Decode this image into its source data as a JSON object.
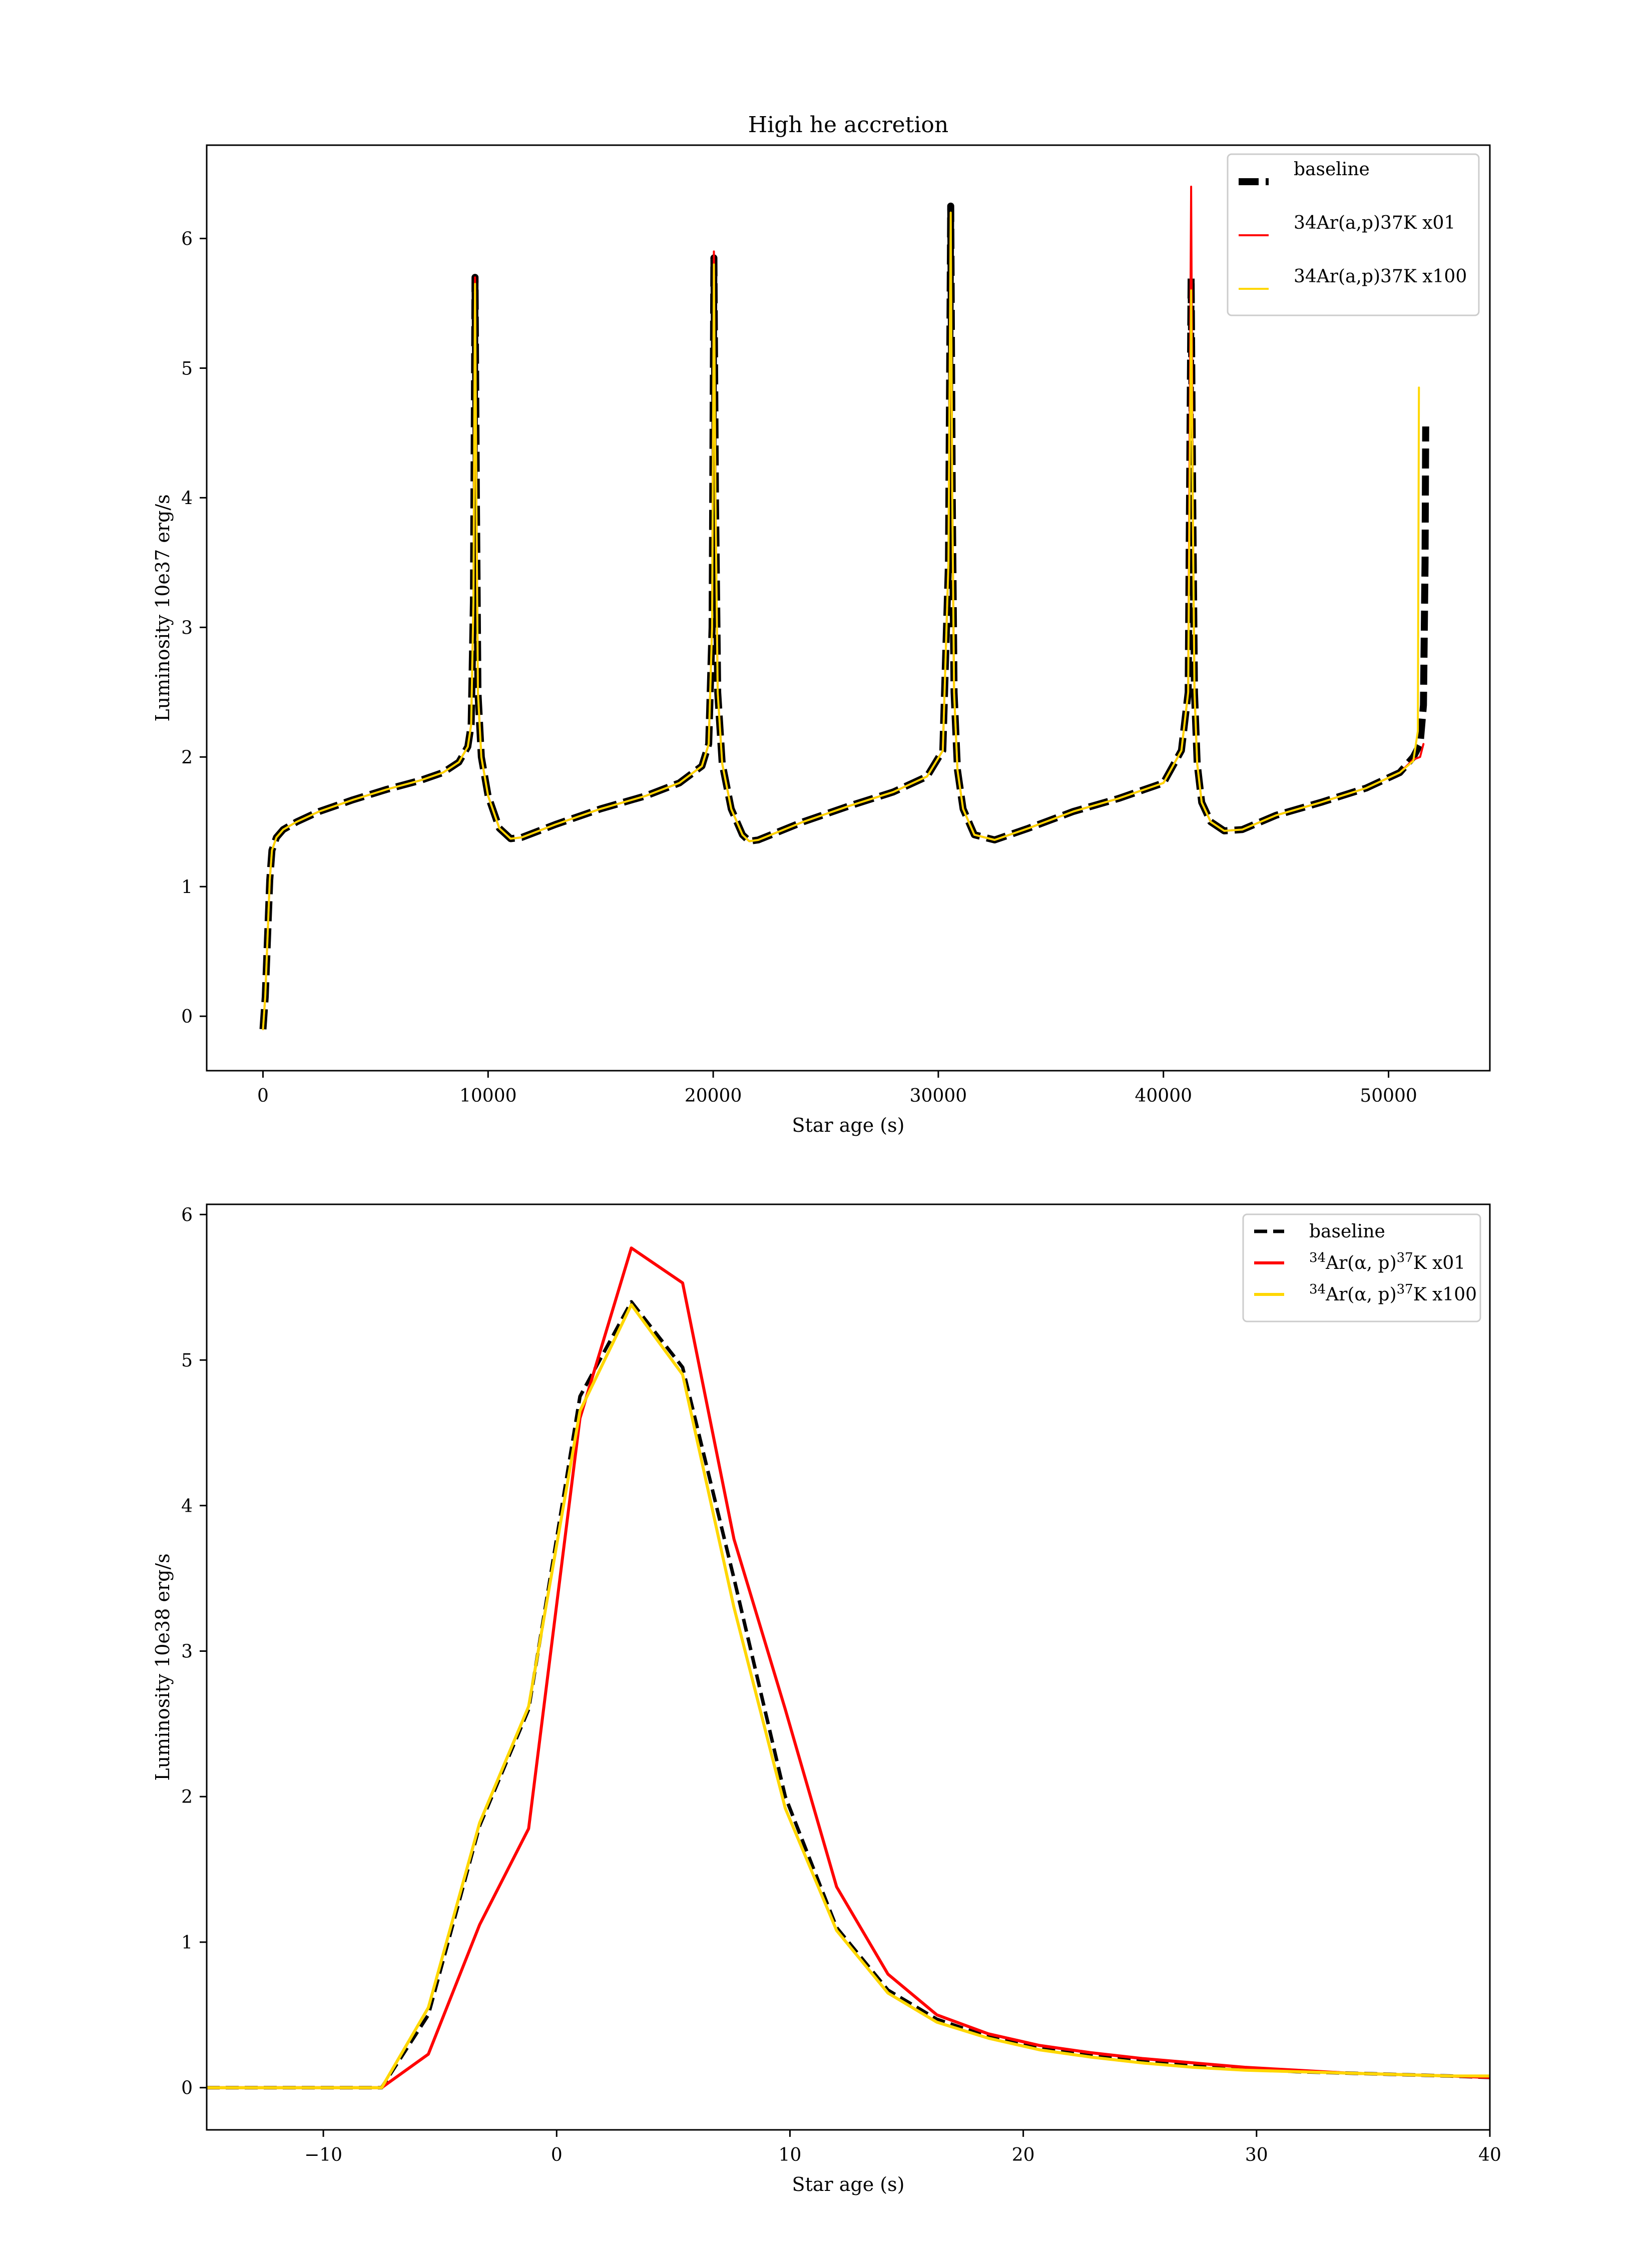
{
  "chart_data": [
    {
      "type": "line",
      "title": "High he accretion",
      "xlabel": "Star age (s)",
      "ylabel": "Luminosity 10e37 erg/s",
      "xlim": [
        -2500,
        54500
      ],
      "ylim": [
        -0.42,
        6.72
      ],
      "xticks": [
        0,
        10000,
        20000,
        30000,
        40000,
        50000
      ],
      "yticks": [
        0,
        1,
        2,
        3,
        4,
        5,
        6
      ],
      "grid": false,
      "legend_position": "top-right",
      "series": [
        {
          "name": "baseline",
          "color": "#000000",
          "style": "dashed",
          "x": [
            0,
            100,
            200,
            300,
            400,
            600,
            900,
            1500,
            2500,
            4000,
            5500,
            7000,
            8000,
            8700,
            9100,
            9250,
            9350,
            9420,
            9480,
            9550,
            9700,
            10000,
            10500,
            11000,
            11500,
            13000,
            15000,
            17000,
            18500,
            19500,
            19800,
            19950,
            20030,
            20100,
            20200,
            20400,
            20800,
            21300,
            21600,
            22000,
            24000,
            26000,
            28000,
            29500,
            30200,
            30450,
            30550,
            30620,
            30700,
            30850,
            31100,
            31600,
            32500,
            34000,
            36000,
            38000,
            40000,
            40800,
            41100,
            41230,
            41300,
            41380,
            41500,
            41700,
            42100,
            42700,
            43500,
            45000,
            47000,
            49000,
            50500,
            51100,
            51400,
            51550,
            51620,
            51650
          ],
          "y": [
            -0.1,
            0.15,
            0.6,
            1.05,
            1.28,
            1.38,
            1.44,
            1.5,
            1.58,
            1.67,
            1.75,
            1.82,
            1.88,
            1.96,
            2.08,
            2.25,
            3.2,
            5.7,
            4.0,
            2.5,
            2.0,
            1.7,
            1.45,
            1.37,
            1.38,
            1.48,
            1.6,
            1.7,
            1.8,
            1.93,
            2.1,
            3.0,
            5.85,
            4.0,
            2.5,
            1.95,
            1.6,
            1.4,
            1.35,
            1.36,
            1.5,
            1.62,
            1.73,
            1.85,
            2.05,
            3.5,
            6.25,
            4.0,
            2.5,
            1.9,
            1.6,
            1.4,
            1.36,
            1.45,
            1.58,
            1.68,
            1.8,
            2.05,
            2.5,
            5.7,
            4.0,
            2.5,
            1.95,
            1.65,
            1.5,
            1.43,
            1.44,
            1.55,
            1.65,
            1.76,
            1.88,
            2.0,
            2.1,
            2.4,
            3.5,
            4.55
          ]
        },
        {
          "name": "34Ar(a,p)37K x01",
          "color": "#ff0000",
          "style": "solid",
          "x": [
            0,
            100,
            200,
            300,
            400,
            600,
            900,
            1500,
            2500,
            4000,
            5500,
            7000,
            8000,
            8700,
            9100,
            9250,
            9350,
            9420,
            9480,
            9550,
            9700,
            10000,
            10500,
            11000,
            11500,
            13000,
            15000,
            17000,
            18500,
            19500,
            19800,
            19950,
            20030,
            20100,
            20200,
            20400,
            20800,
            21300,
            21600,
            22000,
            24000,
            26000,
            28000,
            29500,
            30200,
            30450,
            30550,
            30620,
            30700,
            30850,
            31100,
            31600,
            32500,
            34000,
            36000,
            38000,
            40000,
            40800,
            41100,
            41230,
            41300,
            41380,
            41500,
            41700,
            42100,
            42700,
            43500,
            45000,
            47000,
            49000,
            50500,
            51100,
            51400,
            51550
          ],
          "y": [
            -0.1,
            0.15,
            0.6,
            1.05,
            1.28,
            1.38,
            1.44,
            1.5,
            1.58,
            1.67,
            1.75,
            1.82,
            1.88,
            1.96,
            2.08,
            2.25,
            3.2,
            5.7,
            4.0,
            2.5,
            2.0,
            1.7,
            1.45,
            1.37,
            1.38,
            1.48,
            1.6,
            1.7,
            1.8,
            1.93,
            2.1,
            3.0,
            5.9,
            4.0,
            2.5,
            1.95,
            1.6,
            1.4,
            1.35,
            1.36,
            1.5,
            1.62,
            1.73,
            1.85,
            2.05,
            3.5,
            6.2,
            4.0,
            2.5,
            1.9,
            1.6,
            1.4,
            1.36,
            1.45,
            1.58,
            1.68,
            1.8,
            2.05,
            2.5,
            6.4,
            4.0,
            2.5,
            1.95,
            1.65,
            1.5,
            1.43,
            1.44,
            1.55,
            1.65,
            1.76,
            1.88,
            1.98,
            2.0,
            2.1
          ]
        },
        {
          "name": "34Ar(a,p)37K x100",
          "color": "#ffd700",
          "style": "solid",
          "x": [
            0,
            100,
            200,
            300,
            400,
            600,
            900,
            1500,
            2500,
            4000,
            5500,
            7000,
            8000,
            8700,
            9100,
            9250,
            9350,
            9420,
            9480,
            9550,
            9700,
            10000,
            10500,
            11000,
            11500,
            13000,
            15000,
            17000,
            18500,
            19500,
            19800,
            19950,
            20030,
            20100,
            20200,
            20400,
            20800,
            21300,
            21600,
            22000,
            24000,
            26000,
            28000,
            29500,
            30200,
            30450,
            30550,
            30620,
            30700,
            30850,
            31100,
            31600,
            32500,
            34000,
            36000,
            38000,
            40000,
            40800,
            41100,
            41230,
            41300,
            41380,
            41500,
            41700,
            42100,
            42700,
            43500,
            45000,
            47000,
            49000,
            50500,
            51100,
            51300,
            51350
          ],
          "y": [
            -0.1,
            0.15,
            0.6,
            1.05,
            1.28,
            1.38,
            1.44,
            1.5,
            1.58,
            1.67,
            1.75,
            1.82,
            1.88,
            1.96,
            2.08,
            2.25,
            3.2,
            5.65,
            4.0,
            2.5,
            2.0,
            1.7,
            1.45,
            1.37,
            1.38,
            1.48,
            1.6,
            1.7,
            1.8,
            1.93,
            2.1,
            3.0,
            5.8,
            4.0,
            2.5,
            1.95,
            1.6,
            1.4,
            1.35,
            1.36,
            1.5,
            1.62,
            1.73,
            1.85,
            2.05,
            3.5,
            6.2,
            4.0,
            2.5,
            1.9,
            1.6,
            1.4,
            1.36,
            1.45,
            1.58,
            1.68,
            1.8,
            2.05,
            2.5,
            5.6,
            4.0,
            2.5,
            1.95,
            1.65,
            1.5,
            1.43,
            1.44,
            1.55,
            1.65,
            1.76,
            1.88,
            1.97,
            2.2,
            4.85
          ]
        }
      ]
    },
    {
      "type": "line",
      "title": "",
      "xlabel": "Star age (s)",
      "ylabel": "Luminosity 10e38 erg/s",
      "xlim": [
        -15,
        40
      ],
      "ylim": [
        -0.29,
        6.07
      ],
      "xticks": [
        -10,
        0,
        10,
        20,
        30,
        40
      ],
      "xtick_labels": [
        "−10",
        "0",
        "10",
        "20",
        "30",
        "40"
      ],
      "yticks": [
        0,
        1,
        2,
        3,
        4,
        5,
        6
      ],
      "grid": false,
      "legend_position": "top-right",
      "series": [
        {
          "name": "baseline",
          "legend_parts": [
            "baseline",
            "",
            "",
            ""
          ],
          "color": "#000000",
          "style": "dashed",
          "x": [
            -15,
            -7.5,
            -5.5,
            -3.3,
            -1.2,
            1.0,
            3.2,
            5.4,
            7.6,
            9.8,
            12.0,
            14.2,
            16.3,
            18.5,
            20.7,
            22.9,
            25.1,
            27.3,
            29.5,
            31.7,
            33.9,
            36.1,
            38.3,
            40
          ],
          "y": [
            0.0,
            0.0,
            0.5,
            1.8,
            2.6,
            4.75,
            5.4,
            4.95,
            3.5,
            2.0,
            1.1,
            0.67,
            0.47,
            0.35,
            0.27,
            0.22,
            0.18,
            0.15,
            0.13,
            0.11,
            0.1,
            0.09,
            0.08,
            0.07
          ]
        },
        {
          "name": "34Ar(α,p)37K x01",
          "legend_parts": [
            "34",
            "Ar(α, p)",
            "37",
            "K x01"
          ],
          "color": "#ff0000",
          "style": "solid",
          "x": [
            -15,
            -7.5,
            -5.5,
            -3.3,
            -1.2,
            1.0,
            3.2,
            5.4,
            7.6,
            9.8,
            12.0,
            14.2,
            16.3,
            18.5,
            20.7,
            22.9,
            25.1,
            27.3,
            29.5,
            31.7,
            33.9,
            36.1,
            38.3,
            40
          ],
          "y": [
            0.0,
            0.0,
            0.23,
            1.12,
            1.78,
            4.6,
            5.77,
            5.53,
            3.77,
            2.6,
            1.38,
            0.78,
            0.5,
            0.37,
            0.29,
            0.24,
            0.2,
            0.17,
            0.14,
            0.12,
            0.1,
            0.09,
            0.08,
            0.07
          ]
        },
        {
          "name": "34Ar(α,p)37K x100",
          "legend_parts": [
            "34",
            "Ar(α, p)",
            "37",
            "K x100"
          ],
          "color": "#ffd700",
          "style": "solid",
          "x": [
            -15,
            -7.5,
            -5.5,
            -3.3,
            -1.2,
            1.0,
            3.2,
            5.4,
            7.6,
            9.8,
            12.0,
            14.2,
            16.3,
            18.5,
            20.7,
            22.9,
            25.1,
            27.3,
            29.5,
            31.7,
            33.9,
            36.1,
            38.3,
            40
          ],
          "y": [
            0.0,
            0.0,
            0.55,
            1.82,
            2.62,
            4.65,
            5.38,
            4.9,
            3.3,
            1.92,
            1.08,
            0.65,
            0.45,
            0.34,
            0.26,
            0.21,
            0.17,
            0.14,
            0.12,
            0.11,
            0.1,
            0.09,
            0.08,
            0.08
          ]
        }
      ]
    }
  ]
}
